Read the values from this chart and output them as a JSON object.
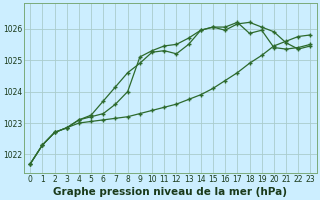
{
  "title": "Graphe pression niveau de la mer (hPa)",
  "background_color": "#cceeff",
  "grid_color": "#aacccc",
  "line_color": "#2d6a2d",
  "xlim": [
    -0.5,
    23.5
  ],
  "ylim": [
    1021.4,
    1026.8
  ],
  "yticks": [
    1022,
    1023,
    1024,
    1025,
    1026
  ],
  "xticks": [
    0,
    1,
    2,
    3,
    4,
    5,
    6,
    7,
    8,
    9,
    10,
    11,
    12,
    13,
    14,
    15,
    16,
    17,
    18,
    19,
    20,
    21,
    22,
    23
  ],
  "line1_x": [
    0,
    1,
    2,
    3,
    4,
    5,
    6,
    7,
    8,
    9,
    10,
    11,
    12,
    13,
    14,
    15,
    16,
    17,
    18,
    19,
    20,
    21,
    22,
    23
  ],
  "line1_y": [
    1021.7,
    1022.3,
    1022.7,
    1022.85,
    1023.0,
    1023.05,
    1023.1,
    1023.15,
    1023.2,
    1023.3,
    1023.4,
    1023.5,
    1023.6,
    1023.75,
    1023.9,
    1024.1,
    1024.35,
    1024.6,
    1024.9,
    1025.15,
    1025.45,
    1025.6,
    1025.75,
    1025.8
  ],
  "line2_x": [
    0,
    1,
    2,
    3,
    4,
    5,
    6,
    7,
    8,
    9,
    10,
    11,
    12,
    13,
    14,
    15,
    16,
    17,
    18,
    19,
    20,
    21,
    22,
    23
  ],
  "line2_y": [
    1021.7,
    1022.3,
    1022.7,
    1022.85,
    1023.1,
    1023.25,
    1023.7,
    1024.15,
    1024.6,
    1024.9,
    1025.25,
    1025.3,
    1025.2,
    1025.5,
    1025.95,
    1026.05,
    1025.95,
    1026.15,
    1026.2,
    1026.05,
    1025.9,
    1025.55,
    1025.35,
    1025.45
  ],
  "line3_x": [
    0,
    1,
    2,
    3,
    4,
    5,
    6,
    7,
    8,
    9,
    10,
    11,
    12,
    13,
    14,
    15,
    16,
    17,
    18,
    19,
    20,
    21,
    22,
    23
  ],
  "line3_y": [
    1021.7,
    1022.3,
    1022.7,
    1022.85,
    1023.1,
    1023.2,
    1023.3,
    1023.6,
    1024.0,
    1025.1,
    1025.3,
    1025.45,
    1025.5,
    1025.7,
    1025.95,
    1026.05,
    1026.05,
    1026.2,
    1025.85,
    1025.95,
    1025.4,
    1025.35,
    1025.4,
    1025.5
  ],
  "marker": "+",
  "markersize": 3.5,
  "markeredgewidth": 1.0,
  "linewidth": 0.9,
  "title_fontsize": 7.5,
  "tick_fontsize": 5.5,
  "tick_color": "#1a3a1a",
  "spine_color": "#7aaa7a"
}
